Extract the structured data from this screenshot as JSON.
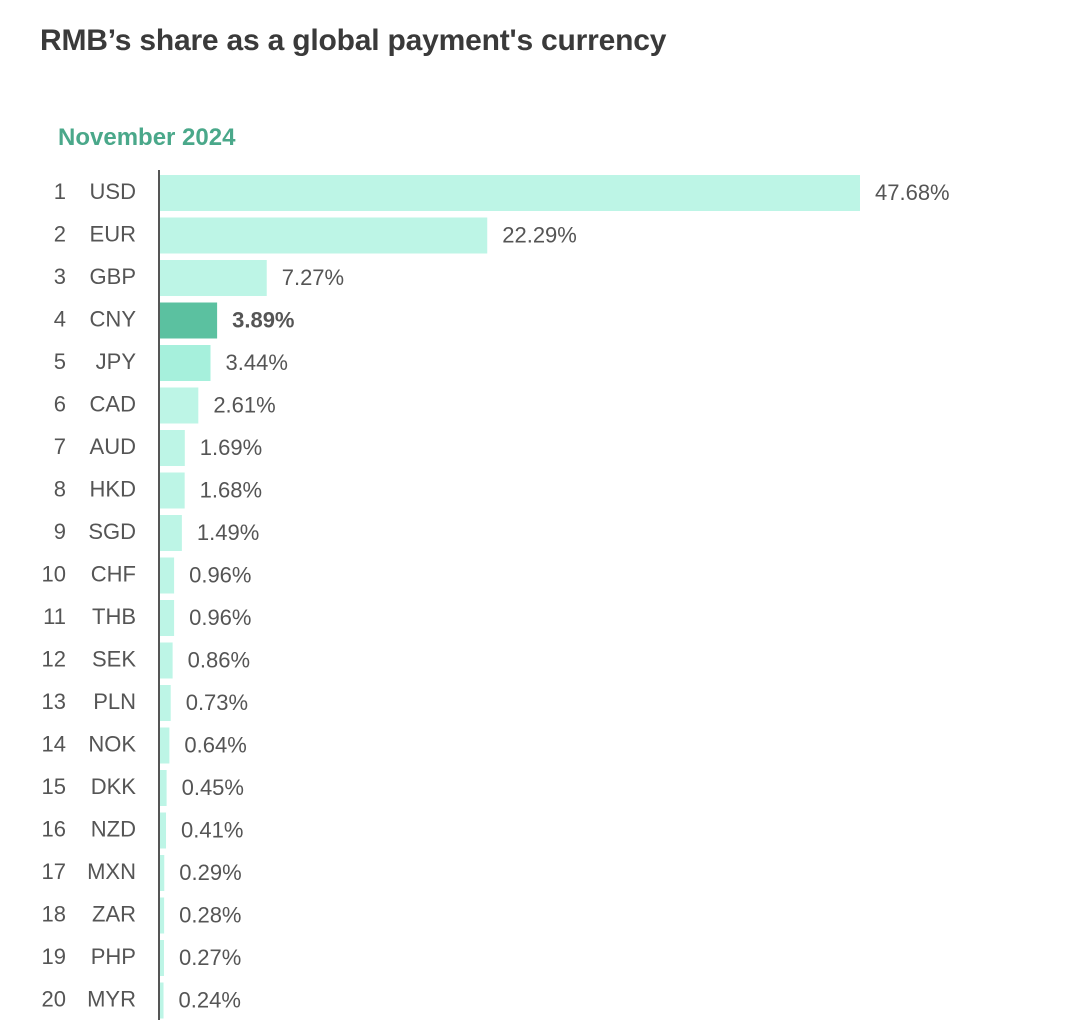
{
  "title": "RMB’s share as a global payment's currency",
  "colors": {
    "bar": "#bdf5e6",
    "bar_alt": "#a6f0dc",
    "bar_highlight": "#5bc1a0",
    "subtitle": "#4aa88a",
    "text": "#555555",
    "axis": "#555555"
  },
  "chart_data": {
    "type": "bar",
    "orientation": "horizontal",
    "subtitle": "November 2024",
    "value_suffix": "%",
    "highlight": "CNY",
    "ranks": [
      "1",
      "2",
      "3",
      "4",
      "5",
      "6",
      "7",
      "8",
      "9",
      "10",
      "11",
      "12",
      "13",
      "14",
      "15",
      "16",
      "17",
      "18",
      "19",
      "20"
    ],
    "categories": [
      "USD",
      "EUR",
      "GBP",
      "CNY",
      "JPY",
      "CAD",
      "AUD",
      "HKD",
      "SGD",
      "CHF",
      "THB",
      "SEK",
      "PLN",
      "NOK",
      "DKK",
      "NZD",
      "MXN",
      "ZAR",
      "PHP",
      "MYR"
    ],
    "values": [
      47.68,
      22.29,
      7.27,
      3.89,
      3.44,
      2.61,
      1.69,
      1.68,
      1.49,
      0.96,
      0.96,
      0.86,
      0.73,
      0.64,
      0.45,
      0.41,
      0.29,
      0.28,
      0.27,
      0.24
    ],
    "labels": [
      "47.68%",
      "22.29%",
      "7.27%",
      "3.89%",
      "3.44%",
      "2.61%",
      "1.69%",
      "1.68%",
      "1.49%",
      "0.96%",
      "0.96%",
      "0.86%",
      "0.73%",
      "0.64%",
      "0.45%",
      "0.41%",
      "0.29%",
      "0.28%",
      "0.27%",
      "0.24%"
    ]
  }
}
